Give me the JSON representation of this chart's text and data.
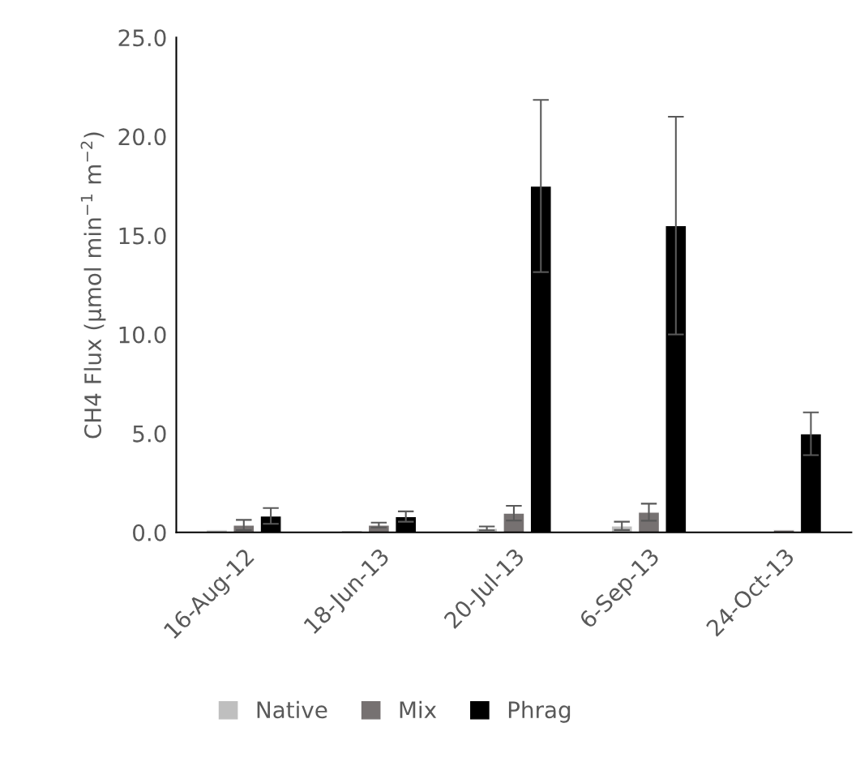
{
  "chart_data": {
    "type": "bar",
    "ylabel": "CH4 Flux (µmol min$^{−1}$ m$^{−2}$)",
    "categories": [
      "16-Aug-12",
      "18-Jun-13",
      "20-Jul-13",
      "6-Sep-13",
      "24-Oct-13"
    ],
    "series": [
      {
        "name": "Native",
        "color": "#bfbfbf",
        "values": [
          0.12,
          0.1,
          0.2,
          0.33,
          0.02
        ],
        "errors": [
          null,
          null,
          0.1,
          0.21,
          null
        ]
      },
      {
        "name": "Mix",
        "color": "#767171",
        "values": [
          0.37,
          0.37,
          0.97,
          1.02,
          0.12
        ],
        "errors": [
          0.26,
          0.12,
          0.37,
          0.43,
          null
        ]
      },
      {
        "name": "Phrag",
        "color": "#000000",
        "values": [
          0.83,
          0.8,
          17.5,
          15.5,
          4.98
        ],
        "errors": [
          0.4,
          0.26,
          4.35,
          5.5,
          1.08
        ]
      }
    ],
    "ylim": [
      0,
      25
    ],
    "yticks": [
      {
        "value": 0,
        "label": "0.0"
      },
      {
        "value": 5,
        "label": "5.0"
      },
      {
        "value": 10,
        "label": "10.0"
      },
      {
        "value": 15,
        "label": "15.0"
      },
      {
        "value": 20,
        "label": "20.0"
      },
      {
        "value": 25,
        "label": "25.0"
      }
    ],
    "grid": false,
    "legend": "bottom"
  }
}
